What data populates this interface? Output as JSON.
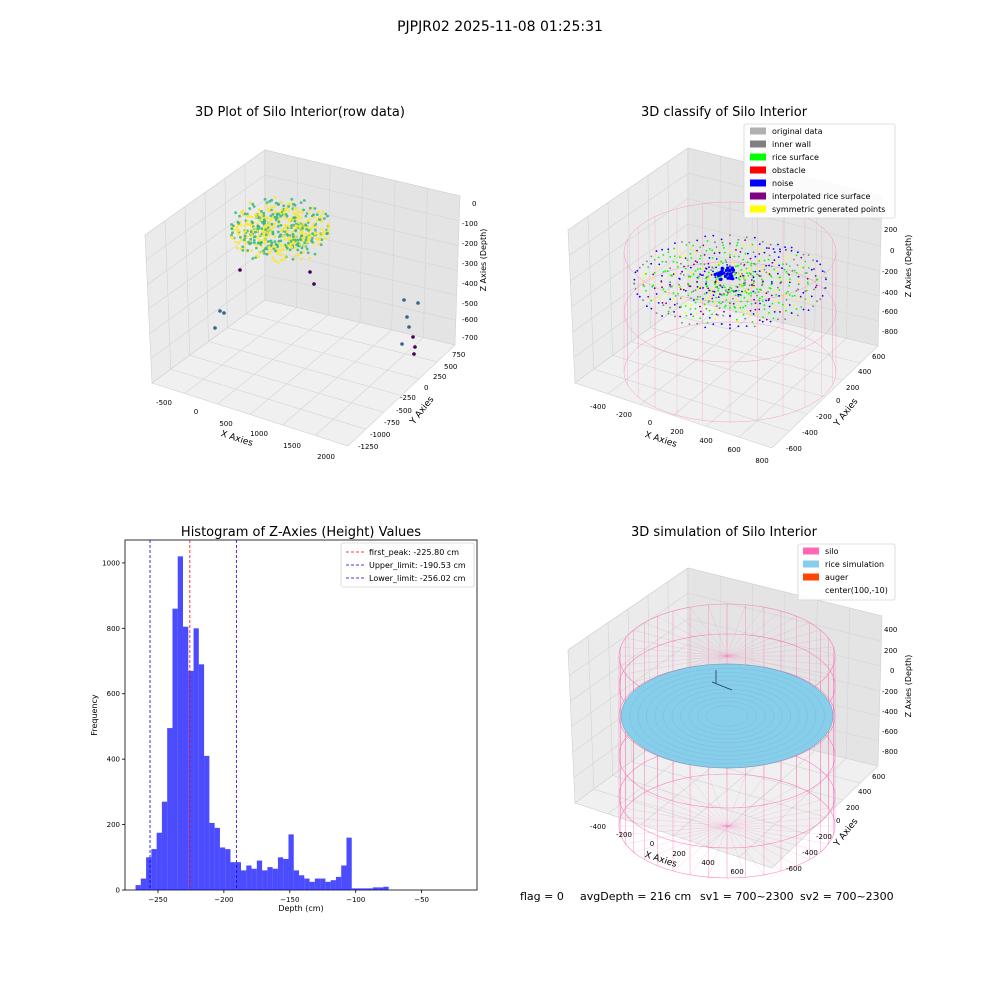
{
  "figure": {
    "suptitle": "PJPJR02 2025-11-08 01:25:31",
    "footer": {
      "flag": "flag = 0",
      "avg_depth": "avgDepth = 216 cm",
      "sv1": "sv1 = 700~2300",
      "sv2": "sv2 = 700~2300"
    }
  },
  "chart_data": [
    {
      "id": "raw",
      "type": "scatter",
      "title": "3D Plot of Silo Interior(row data)",
      "xlabel": "X Axies",
      "ylabel": "Y Axies",
      "zlabel": "Z Axies (Depth)",
      "x_ticks": [
        "-500",
        "0",
        "500",
        "1000",
        "1500",
        "2000"
      ],
      "y_ticks": [
        "750",
        "500",
        "250",
        "0",
        "-250",
        "-500",
        "-750",
        "-1000",
        "-1250"
      ],
      "z_ticks": [
        "0",
        "-100",
        "-200",
        "-300",
        "-400",
        "-500",
        "-600",
        "-700"
      ],
      "xlim": [
        -600,
        2100
      ],
      "ylim": [
        -1350,
        800
      ],
      "zlim": [
        -760,
        30
      ],
      "grid": true,
      "colormap": [
        "#440154",
        "#31688e",
        "#35b779",
        "#fde725"
      ]
    },
    {
      "id": "classify",
      "type": "scatter",
      "title": "3D classify of Silo Interior",
      "xlabel": "X Axies",
      "ylabel": "Y Axies",
      "zlabel": "Z Axies (Depth)",
      "x_ticks": [
        "-400",
        "-200",
        "0",
        "200",
        "400",
        "600",
        "800"
      ],
      "y_ticks": [
        "600",
        "400",
        "200",
        "0",
        "-200",
        "-400",
        "-600"
      ],
      "z_ticks": [
        "200",
        "0",
        "-200",
        "-400",
        "-600",
        "-800"
      ],
      "xlim": [
        -500,
        850
      ],
      "ylim": [
        -700,
        700
      ],
      "zlim": [
        -900,
        400
      ],
      "grid": true,
      "legend": {
        "position": "upper-right",
        "entries": [
          {
            "label": "original data",
            "color": "#b0b0b0"
          },
          {
            "label": "inner wall",
            "color": "#808080"
          },
          {
            "label": "rice surface",
            "color": "#00ff00"
          },
          {
            "label": "obstacle",
            "color": "#ff0000"
          },
          {
            "label": "noise",
            "color": "#0000ff"
          },
          {
            "label": "interpolated rice surface",
            "color": "#800080"
          },
          {
            "label": "symmetric generated points",
            "color": "#ffff00"
          }
        ]
      }
    },
    {
      "id": "histogram",
      "type": "bar",
      "title": "Histogram of Z-Axies (Height) Values",
      "xlabel": "Depth (cm)",
      "ylabel": "Frequency",
      "xlim": [
        -275,
        -8
      ],
      "ylim": [
        0,
        1070
      ],
      "x_ticks": [
        -250,
        -200,
        -150,
        -100,
        -50
      ],
      "y_ticks": [
        0,
        200,
        400,
        600,
        800,
        1000
      ],
      "bin_edges_start": -267,
      "bin_width": 4,
      "values": [
        15,
        35,
        100,
        125,
        175,
        270,
        495,
        860,
        1020,
        805,
        670,
        800,
        690,
        410,
        205,
        190,
        130,
        125,
        85,
        85,
        60,
        75,
        65,
        90,
        60,
        70,
        65,
        100,
        95,
        170,
        60,
        45,
        35,
        25,
        35,
        35,
        25,
        30,
        40,
        75,
        160,
        5,
        5,
        5,
        5,
        8,
        8,
        10
      ],
      "bar_color": "#0000ff",
      "vlines": [
        {
          "x": -225.8,
          "color": "#ff0000",
          "label": "first_peak: -225.80 cm"
        },
        {
          "x": -190.53,
          "color": "#0000cc",
          "label": "Upper_limit: -190.53 cm"
        },
        {
          "x": -256.02,
          "color": "#0000cc",
          "label": "Lower_limit: -256.02 cm"
        }
      ],
      "legend": {
        "position": "upper-right"
      }
    },
    {
      "id": "simulation",
      "type": "scatter",
      "title": "3D simulation of Silo Interior",
      "xlabel": "X Axies",
      "ylabel": "Y Axies",
      "zlabel": "Z Axies (Depth)",
      "x_ticks": [
        "-400",
        "-200",
        "0",
        "200",
        "400",
        "600"
      ],
      "y_ticks": [
        "600",
        "400",
        "200",
        "0",
        "-200",
        "-400",
        "-600"
      ],
      "z_ticks": [
        "400",
        "200",
        "0",
        "-200",
        "-400",
        "-600",
        "-800"
      ],
      "xlim": [
        -500,
        700
      ],
      "ylim": [
        -700,
        700
      ],
      "zlim": [
        -900,
        450
      ],
      "grid": true,
      "legend": {
        "position": "upper-right",
        "entries": [
          {
            "label": "silo",
            "color": "#ff69b4"
          },
          {
            "label": "rice simulation",
            "color": "#87ceeb"
          },
          {
            "label": "auger",
            "color": "#ff4500"
          },
          {
            "label": "center(100,-10)",
            "color": ""
          }
        ]
      }
    }
  ]
}
